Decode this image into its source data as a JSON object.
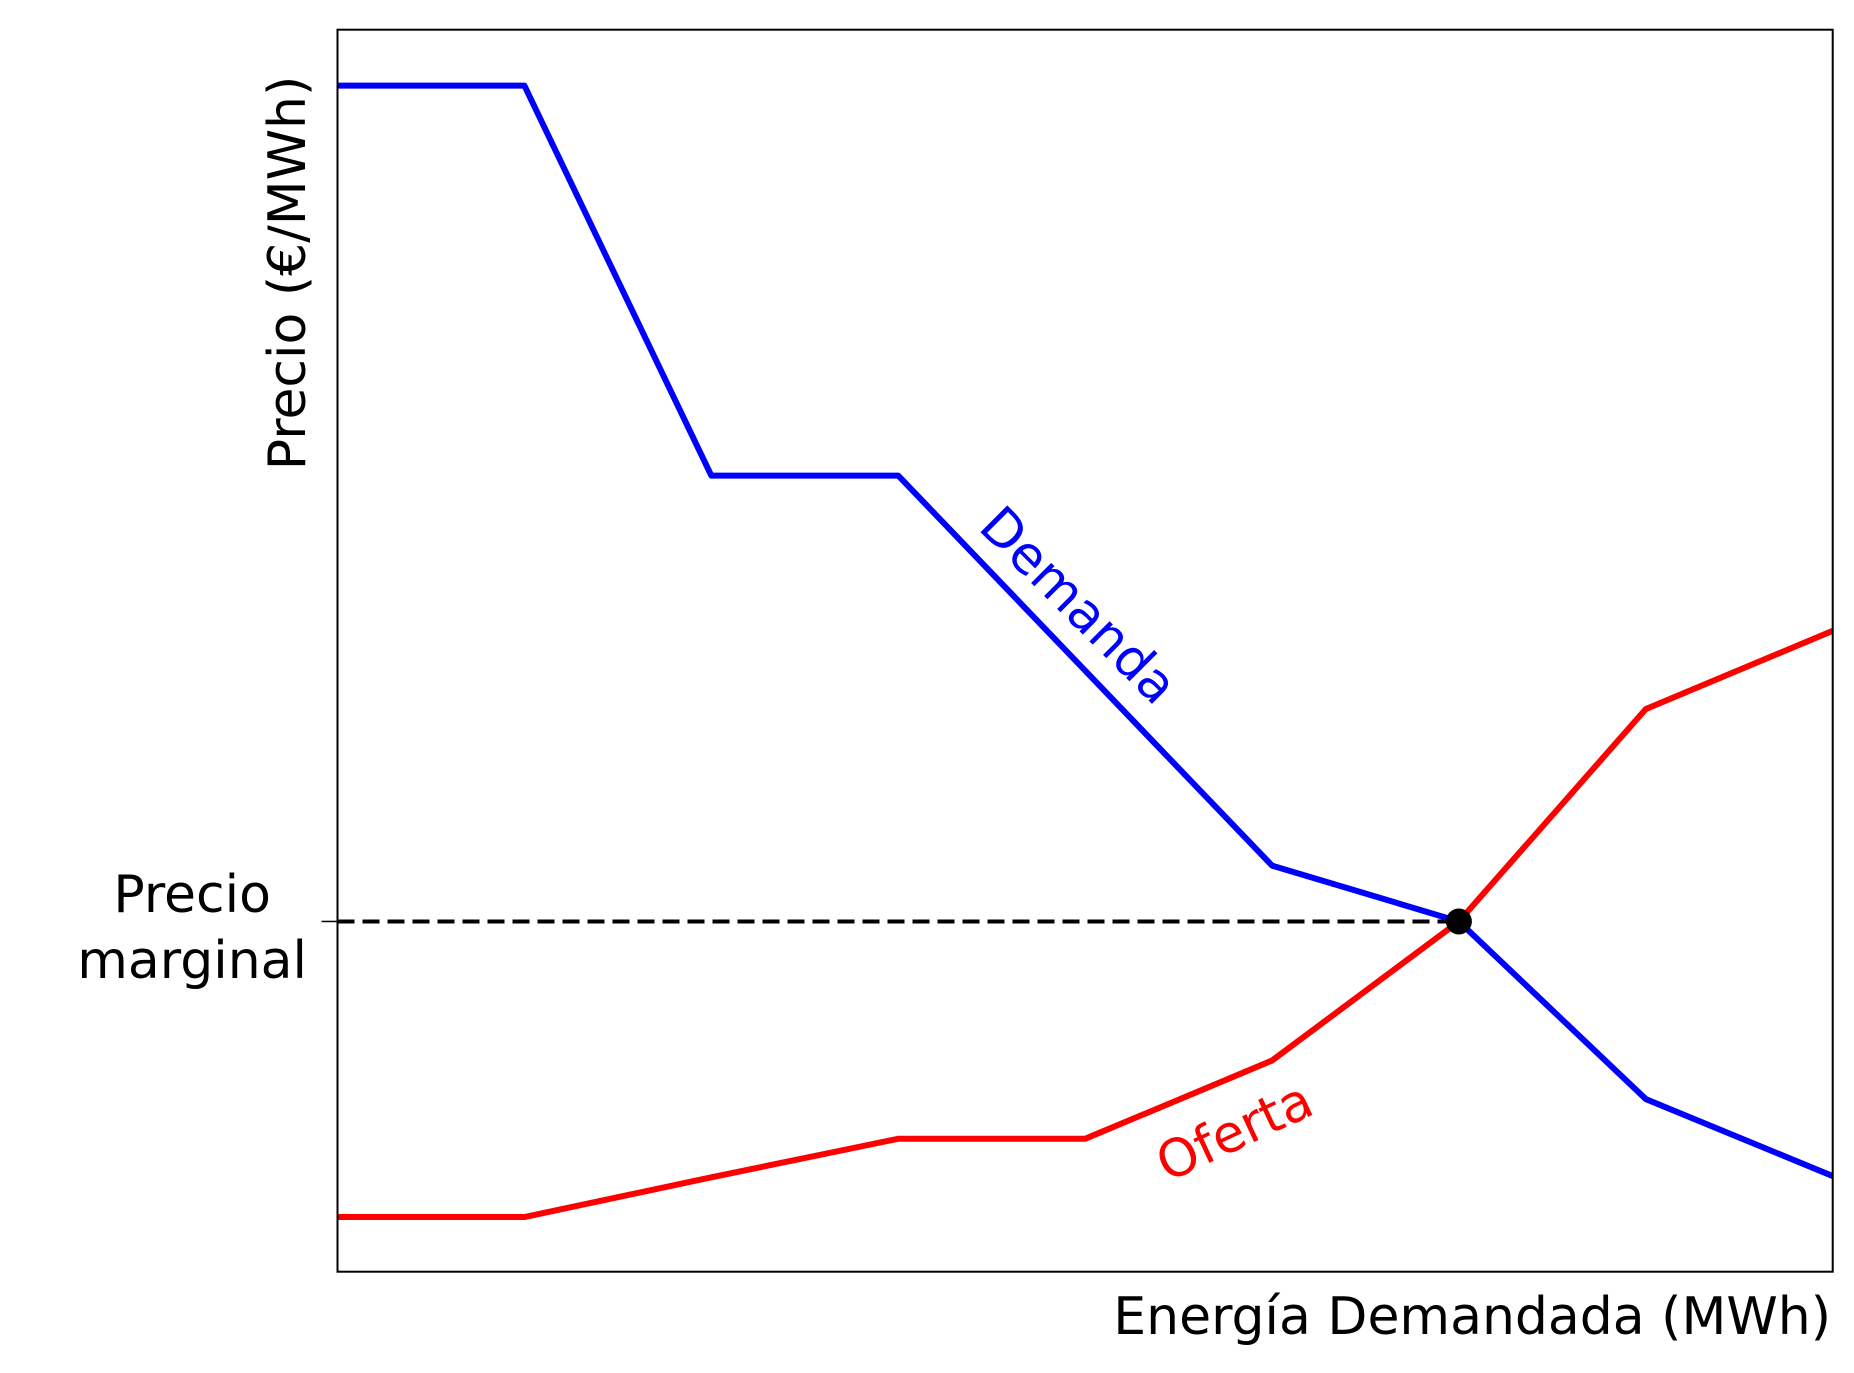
{
  "chart_data": {
    "type": "line",
    "xlabel": "Energía Demandada (MWh)",
    "ylabel": "Precio (€/MWh)",
    "x": [
      0,
      1,
      2,
      3,
      4,
      5,
      6,
      7,
      8
    ],
    "xlim": [
      0,
      8
    ],
    "ylim": [
      0,
      100
    ],
    "yticks": [
      {
        "value": 28.2,
        "label": "Precio\nmarginal"
      }
    ],
    "series": [
      {
        "name": "Demanda",
        "color": "#0000ff",
        "values": [
          95.5,
          95.5,
          64.1,
          64.1,
          48.4,
          32.7,
          28.2,
          13.9,
          7.7
        ]
      },
      {
        "name": "Oferta",
        "color": "#ff0000",
        "values": [
          4.4,
          4.4,
          7.6,
          10.7,
          10.7,
          17.0,
          28.2,
          45.3,
          51.6
        ]
      }
    ],
    "equilibrium": {
      "x": 6,
      "y": 28.2,
      "color": "#000000"
    }
  }
}
